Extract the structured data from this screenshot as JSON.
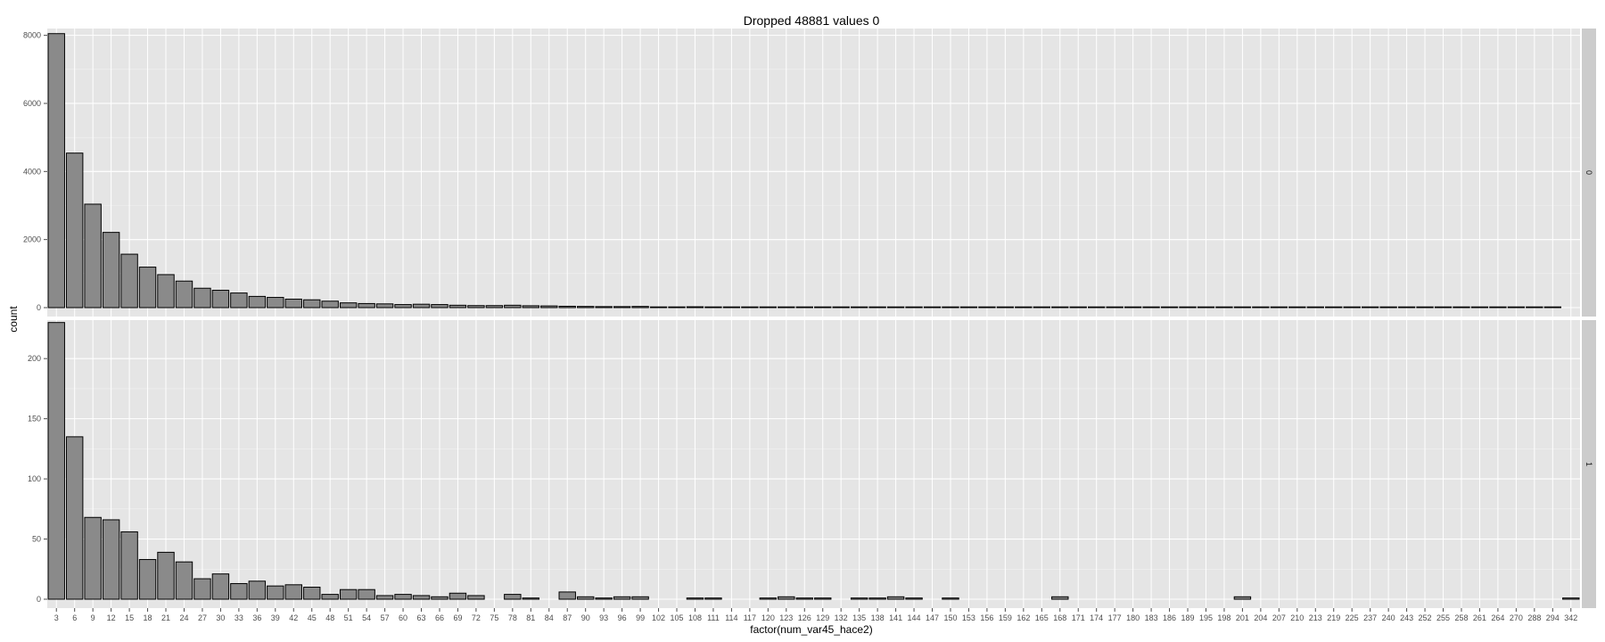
{
  "chart_data": {
    "type": "bar",
    "title": "Dropped 48881 values 0",
    "xlabel": "factor(num_var45_hace2)",
    "ylabel": "count",
    "grid": true,
    "colors": {
      "bar_fill": "#8a8a8a",
      "bar_stroke": "#000000",
      "panel_bg": "#e5e5e5",
      "strip_bg": "#cccccc",
      "grid": "#ffffff"
    },
    "categories": [
      "3",
      "6",
      "9",
      "12",
      "15",
      "18",
      "21",
      "24",
      "27",
      "30",
      "33",
      "36",
      "39",
      "42",
      "45",
      "48",
      "51",
      "54",
      "57",
      "60",
      "63",
      "66",
      "69",
      "72",
      "75",
      "78",
      "81",
      "84",
      "87",
      "90",
      "93",
      "96",
      "99",
      "102",
      "105",
      "108",
      "111",
      "114",
      "117",
      "120",
      "123",
      "126",
      "129",
      "132",
      "135",
      "138",
      "141",
      "144",
      "147",
      "150",
      "153",
      "156",
      "159",
      "162",
      "165",
      "168",
      "171",
      "174",
      "177",
      "180",
      "183",
      "186",
      "189",
      "195",
      "198",
      "201",
      "204",
      "207",
      "210",
      "213",
      "219",
      "225",
      "237",
      "240",
      "243",
      "252",
      "255",
      "258",
      "261",
      "264",
      "270",
      "288",
      "294",
      "342"
    ],
    "facets": [
      {
        "label": "0",
        "ylim": [
          0,
          8200
        ],
        "yticks": [
          0,
          2000,
          4000,
          6000,
          8000
        ],
        "values": [
          8050,
          4540,
          3040,
          2210,
          1570,
          1190,
          970,
          780,
          570,
          510,
          430,
          330,
          300,
          250,
          230,
          190,
          140,
          120,
          110,
          90,
          100,
          90,
          70,
          60,
          60,
          70,
          55,
          50,
          40,
          35,
          30,
          30,
          35,
          20,
          20,
          25,
          20,
          15,
          15,
          15,
          15,
          12,
          12,
          12,
          10,
          10,
          10,
          10,
          8,
          8,
          8,
          7,
          7,
          7,
          6,
          6,
          6,
          5,
          5,
          5,
          5,
          5,
          4,
          4,
          4,
          4,
          4,
          3,
          3,
          3,
          3,
          3,
          3,
          3,
          3,
          3,
          2,
          2,
          2,
          2,
          2,
          2,
          2,
          null
        ]
      },
      {
        "label": "1",
        "ylim": [
          0,
          232
        ],
        "yticks": [
          0,
          50,
          100,
          150,
          200
        ],
        "values": [
          230,
          135,
          68,
          66,
          56,
          33,
          39,
          31,
          17,
          21,
          13,
          15,
          11,
          12,
          10,
          4,
          8,
          8,
          3,
          4,
          3,
          2,
          5,
          3,
          null,
          4,
          1,
          null,
          6,
          2,
          1,
          2,
          2,
          null,
          null,
          1,
          1,
          null,
          null,
          1,
          2,
          1,
          1,
          null,
          1,
          1,
          2,
          1,
          null,
          1,
          null,
          null,
          null,
          null,
          null,
          2,
          null,
          null,
          null,
          null,
          null,
          null,
          null,
          null,
          null,
          2,
          null,
          null,
          null,
          null,
          null,
          null,
          null,
          null,
          null,
          null,
          null,
          null,
          null,
          null,
          null,
          null,
          null,
          1
        ]
      }
    ]
  }
}
